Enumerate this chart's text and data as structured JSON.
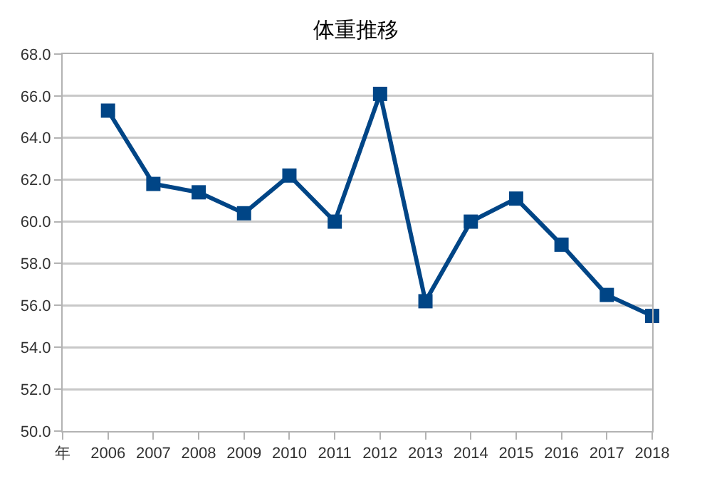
{
  "chart_data": {
    "type": "line",
    "title": "体重推移",
    "categories": [
      "年",
      "2006",
      "2007",
      "2008",
      "2009",
      "2010",
      "2011",
      "2012",
      "2013",
      "2014",
      "2015",
      "2016",
      "2017",
      "2018"
    ],
    "series": [
      {
        "color": "#004586",
        "values": [
          null,
          65.3,
          61.8,
          61.4,
          60.4,
          62.2,
          60.0,
          66.1,
          56.2,
          60.0,
          61.1,
          58.9,
          56.5,
          55.5
        ]
      }
    ],
    "ylim": [
      50,
      68
    ],
    "yticks": [
      {
        "value": 50,
        "label": "50.0"
      },
      {
        "value": 52,
        "label": "52.0"
      },
      {
        "value": 54,
        "label": "54.0"
      },
      {
        "value": 56,
        "label": "56.0"
      },
      {
        "value": 58,
        "label": "58.0"
      },
      {
        "value": 60,
        "label": "60.0"
      },
      {
        "value": 62,
        "label": "62.0"
      },
      {
        "value": 64,
        "label": "64.0"
      },
      {
        "value": 66,
        "label": "66.0"
      },
      {
        "value": 68,
        "label": "68.0"
      }
    ],
    "grid": "y",
    "marker": "square",
    "line_style": "solid"
  }
}
